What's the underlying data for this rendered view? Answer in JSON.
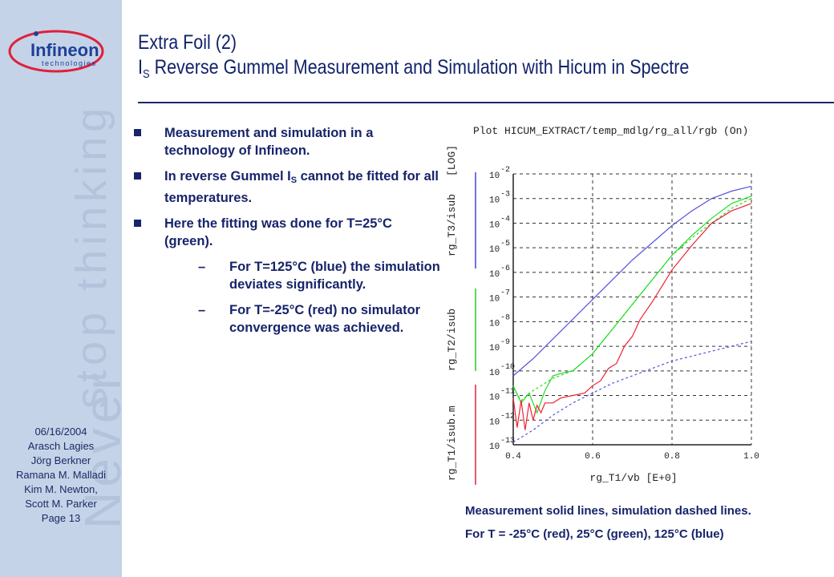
{
  "sidebar": {
    "logo_name": "Infineon",
    "logo_sub": "technologies",
    "watermark_top": "Never",
    "watermark_bottom": "stop thinking",
    "meta_lines": [
      "06/16/2004",
      "Arasch Lagies",
      "Jörg Berkner",
      "Ramana M. Malladi",
      "Kim M. Newton,",
      "Scott M. Parker",
      "Page 13"
    ]
  },
  "header": {
    "title_line1": "Extra Foil (2)",
    "title_line2_prefix": "I",
    "title_line2_sub": "S",
    "title_line2_rest": " Reverse Gummel Measurement and Simulation with Hicum in Spectre"
  },
  "bullets": {
    "b1": "Measurement and simulation in a technology of Infineon.",
    "b2_pre": "In reverse Gummel I",
    "b2_sub": "S",
    "b2_post": " cannot be fitted for all temperatures.",
    "b3": "Here the fitting was done for T=25°C (green).",
    "dash": "–",
    "s1": "For T=125°C (blue) the simulation deviates significantly.",
    "s2": "For T=-25°C (red) no simulator convergence was achieved."
  },
  "caption": {
    "line1": "Measurement solid lines, simulation dashed lines.",
    "line2": "For T = -25°C (red), 25°C (green), 125°C (blue)"
  },
  "chart_data": {
    "type": "line",
    "title": "Plot HICUM_EXTRACT/temp_mdlg/rg_all/rgb (On)",
    "xlabel": "rg_T1/vb   [E+0]",
    "ylabels": [
      "rg_T1/isub.m",
      "rg_T2/isub",
      "rg_T3/isub"
    ],
    "ylabel_colors": [
      "#e0203a",
      "#22cc22",
      "#4444dd"
    ],
    "yscale_label": "[LOG]",
    "xlim": [
      0.4,
      1.0
    ],
    "x_ticks": [
      "0.4",
      "0.6",
      "0.8",
      "1.0"
    ],
    "x_tick_values": [
      0.4,
      0.6,
      0.8,
      1.0
    ],
    "ylim_exp": [
      -13,
      -2
    ],
    "y_ticks": [
      "10^-2",
      "10^-3",
      "10^-4",
      "10^-5",
      "10^-6",
      "10^-7",
      "10^-8",
      "10^-9",
      "10^-10",
      "10^-11",
      "10^-12",
      "10^-13"
    ],
    "y_tick_exps": [
      -2,
      -3,
      -4,
      -5,
      -6,
      -7,
      -8,
      -9,
      -10,
      -11,
      -12,
      -13
    ],
    "grid": true,
    "series": [
      {
        "temp": "125°C",
        "kind": "measurement",
        "color": "#5555dd",
        "dashed": false,
        "x": [
          0.4,
          0.45,
          0.5,
          0.55,
          0.6,
          0.65,
          0.7,
          0.75,
          0.8,
          0.85,
          0.9,
          0.95,
          1.0
        ],
        "log10_y": [
          -10.2,
          -9.5,
          -8.7,
          -7.9,
          -7.1,
          -6.3,
          -5.5,
          -4.8,
          -4.1,
          -3.5,
          -3.0,
          -2.7,
          -2.5
        ]
      },
      {
        "temp": "125°C",
        "kind": "simulation",
        "color": "#5555dd",
        "dashed": true,
        "x": [
          0.4,
          0.45,
          0.5,
          0.55,
          0.6,
          0.65,
          0.7,
          0.75,
          0.8,
          0.85,
          0.9,
          0.95,
          1.0
        ],
        "log10_y": [
          -12.9,
          -12.4,
          -11.8,
          -11.3,
          -10.9,
          -10.5,
          -10.2,
          -9.9,
          -9.6,
          -9.4,
          -9.2,
          -9.0,
          -8.8
        ]
      },
      {
        "temp": "25°C",
        "kind": "measurement",
        "color": "#22dd22",
        "dashed": false,
        "x": [
          0.4,
          0.42,
          0.44,
          0.46,
          0.48,
          0.5,
          0.52,
          0.55,
          0.6,
          0.65,
          0.7,
          0.75,
          0.8,
          0.85,
          0.9,
          0.95,
          1.0
        ],
        "log10_y": [
          -10.6,
          -11.3,
          -10.9,
          -11.7,
          -10.8,
          -10.2,
          -10.1,
          -10.0,
          -9.3,
          -8.3,
          -7.3,
          -6.3,
          -5.3,
          -4.5,
          -3.8,
          -3.2,
          -2.9
        ]
      },
      {
        "temp": "25°C",
        "kind": "simulation",
        "color": "#22dd22",
        "dashed": true,
        "x": [
          0.4,
          0.42,
          0.45,
          0.5,
          0.55,
          0.6,
          0.65,
          0.7,
          0.75,
          0.8,
          0.85,
          0.9,
          0.95,
          1.0
        ],
        "log10_y": [
          -10.7,
          -11.2,
          -10.8,
          -10.3,
          -10.0,
          -9.3,
          -8.3,
          -7.3,
          -6.3,
          -5.3,
          -4.6,
          -4.0,
          -3.4,
          -3.0
        ]
      },
      {
        "temp": "-25°C",
        "kind": "measurement",
        "color": "#ee2233",
        "dashed": false,
        "x": [
          0.4,
          0.41,
          0.42,
          0.43,
          0.44,
          0.45,
          0.46,
          0.47,
          0.48,
          0.5,
          0.52,
          0.55,
          0.58,
          0.6,
          0.62,
          0.64,
          0.66,
          0.68,
          0.7,
          0.72,
          0.75,
          0.8,
          0.85,
          0.9,
          0.95,
          1.0
        ],
        "log10_y": [
          -11.1,
          -12.3,
          -11.2,
          -12.4,
          -11.3,
          -12.0,
          -11.4,
          -11.7,
          -11.3,
          -11.3,
          -11.1,
          -11.0,
          -10.9,
          -10.6,
          -10.4,
          -9.9,
          -9.7,
          -9.0,
          -8.6,
          -7.9,
          -7.2,
          -5.9,
          -4.9,
          -4.0,
          -3.5,
          -3.2
        ]
      }
    ]
  }
}
